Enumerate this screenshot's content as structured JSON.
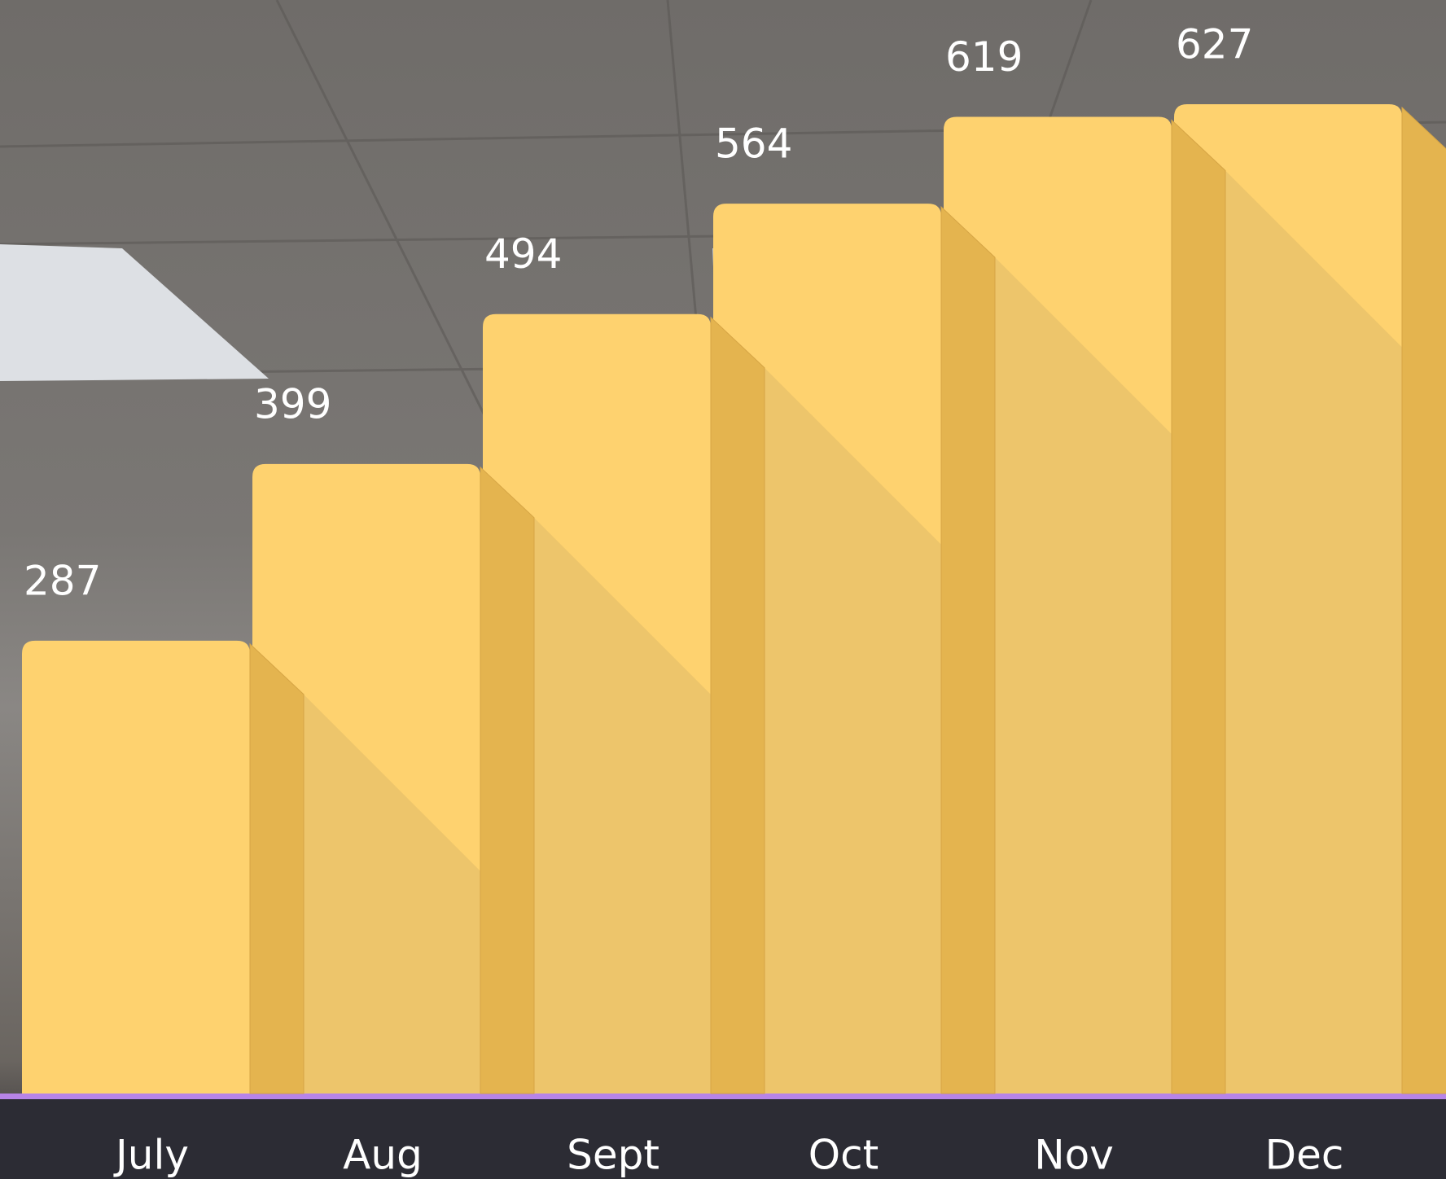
{
  "chart_data": {
    "type": "bar",
    "categories": [
      "July",
      "Aug",
      "Sept",
      "Oct",
      "Nov",
      "Dec"
    ],
    "values": [
      287,
      399,
      494,
      564,
      619,
      627
    ],
    "color": "#fed26f"
  }
}
